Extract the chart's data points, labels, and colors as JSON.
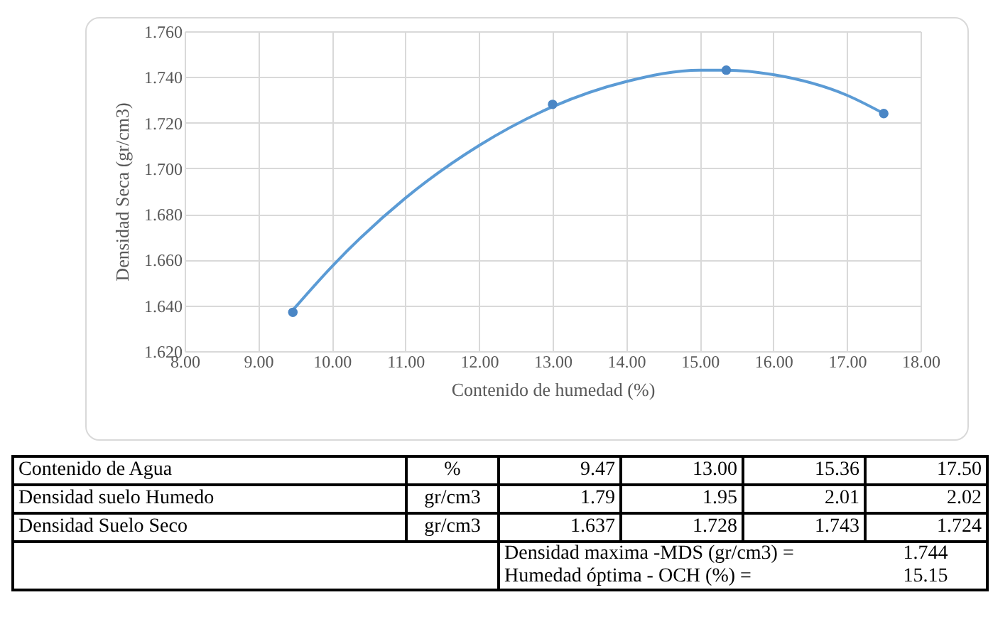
{
  "chart_data": {
    "type": "line",
    "xlabel": "Contenido de humedad (%)",
    "ylabel": "Densidad Seca (gr/cm3)",
    "xlim": [
      8,
      18
    ],
    "xticks": [
      {
        "value": 8,
        "label": "8.00"
      },
      {
        "value": 9,
        "label": "9.00"
      },
      {
        "value": 10,
        "label": "10.00"
      },
      {
        "value": 11,
        "label": "11.00"
      },
      {
        "value": 12,
        "label": "12.00"
      },
      {
        "value": 13,
        "label": "13.00"
      },
      {
        "value": 14,
        "label": "14.00"
      },
      {
        "value": 15,
        "label": "15.00"
      },
      {
        "value": 16,
        "label": "16.00"
      },
      {
        "value": 17,
        "label": "17.00"
      },
      {
        "value": 18,
        "label": "18.00"
      }
    ],
    "ylim": [
      1.62,
      1.76
    ],
    "yticks": [
      {
        "value": 1.62,
        "label": "1.620"
      },
      {
        "value": 1.64,
        "label": "1.640"
      },
      {
        "value": 1.66,
        "label": "1.660"
      },
      {
        "value": 1.68,
        "label": "1.680"
      },
      {
        "value": 1.7,
        "label": "1.700"
      },
      {
        "value": 1.72,
        "label": "1.720"
      },
      {
        "value": 1.74,
        "label": "1.740"
      },
      {
        "value": 1.76,
        "label": "1.760"
      }
    ],
    "grid": true,
    "line_style": "solid",
    "series": [
      {
        "type": "line",
        "color": "#5b9bd5",
        "x": [
          9.47,
          10,
          11,
          12,
          13,
          14,
          15,
          15.36,
          16,
          17,
          17.5
        ],
        "values": [
          1.638,
          1.657,
          1.687,
          1.71,
          1.727,
          1.738,
          1.743,
          1.743,
          1.741,
          1.732,
          1.724
        ]
      },
      {
        "type": "scatter",
        "marker": "circle",
        "color": "#4a86c5",
        "x": [
          9.47,
          13,
          15.36,
          17.5
        ],
        "values": [
          1.637,
          1.728,
          1.743,
          1.724
        ]
      }
    ],
    "annotations": [
      "Contenido de Agua",
      "%",
      "9.47",
      "13.00",
      "15.36",
      "17.50",
      "Densidad suelo Humedo",
      "gr/cm3",
      "1.79",
      "1.95",
      "2.01",
      "2.02",
      "Densidad Suelo Seco",
      "gr/cm3",
      "1.637",
      "1.728",
      "1.743",
      "1.724",
      "Densidad maxima -MDS (gr/cm3) =",
      "1.744",
      "Humedad óptima - OCH (%) =",
      "15.15"
    ]
  }
}
